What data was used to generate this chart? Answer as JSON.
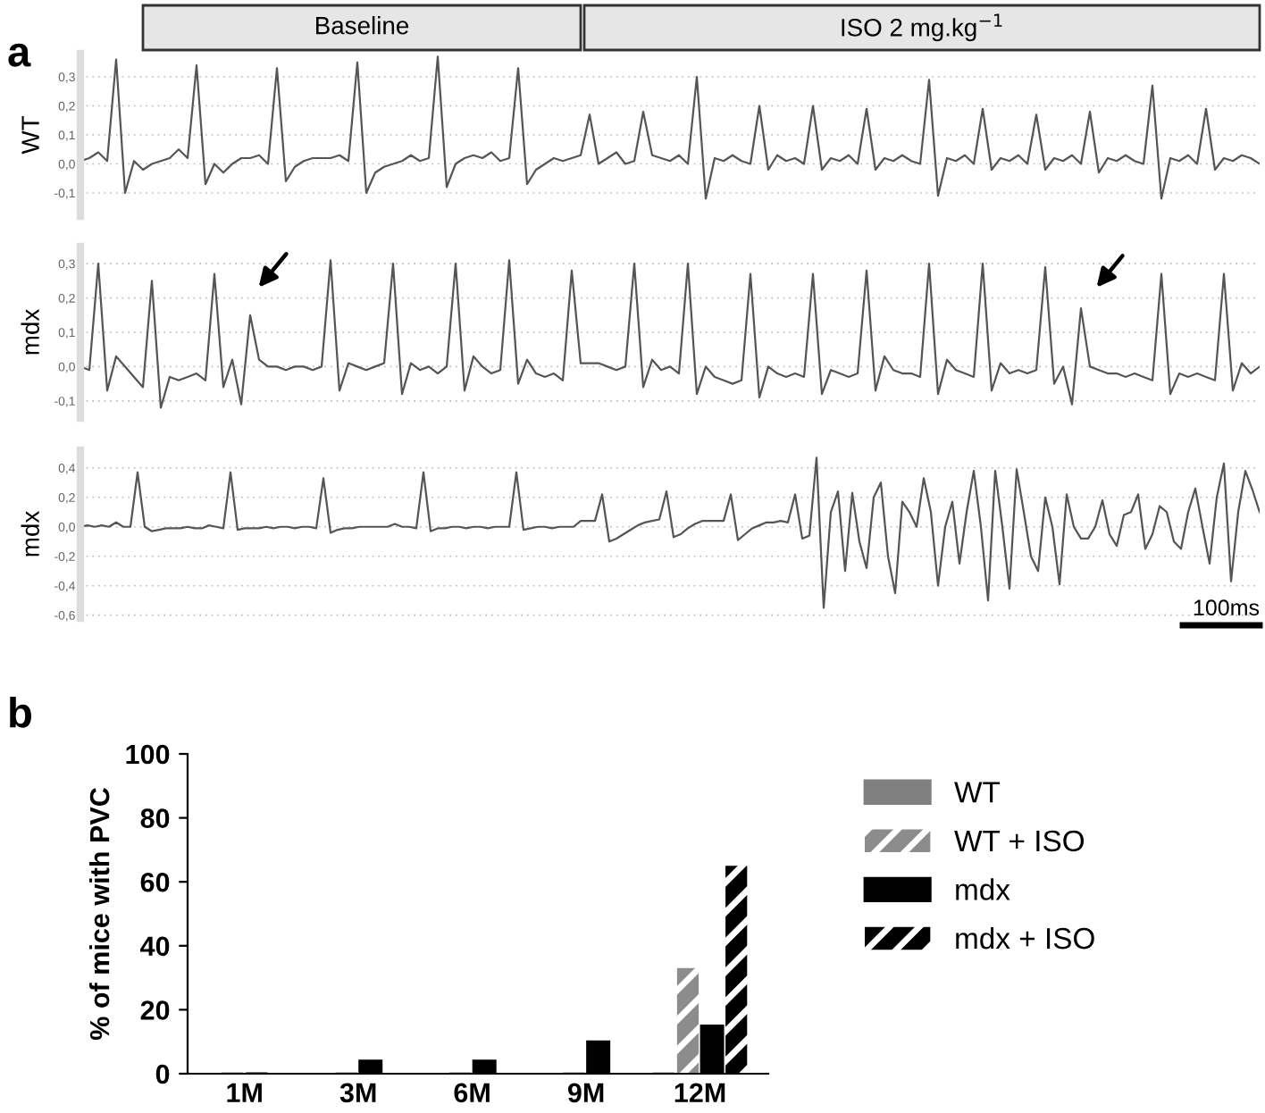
{
  "chart_data": [
    {
      "type": "line",
      "title": "a",
      "ylabel": "WT",
      "annotations": [
        "Baseline",
        "ISO 2 mg.kg$^{−1}$"
      ],
      "categories": [
        null,
        null,
        null,
        null,
        null,
        null,
        null,
        null,
        null,
        null,
        null,
        null,
        null,
        null,
        null,
        null,
        null,
        null,
        null,
        null,
        null,
        null,
        null,
        null,
        null,
        null,
        null,
        null,
        null,
        null,
        null,
        null,
        null,
        null,
        null,
        null,
        null,
        null,
        null,
        null,
        null,
        null,
        null,
        null,
        null,
        null,
        null,
        null,
        null,
        null,
        null,
        null,
        null,
        null,
        null,
        null,
        null,
        null,
        null,
        null,
        null,
        null,
        null,
        null,
        null,
        null,
        null,
        null,
        null,
        null,
        null,
        null,
        null,
        null,
        null,
        null,
        null,
        null,
        null,
        null,
        null,
        null,
        null,
        null,
        null,
        null,
        null,
        null,
        null,
        null,
        null,
        null,
        null,
        null,
        null,
        null,
        null,
        null,
        null,
        null,
        null,
        null,
        null,
        null,
        null,
        null,
        null,
        null,
        null,
        null,
        null,
        null,
        null,
        null,
        null,
        null,
        null,
        null,
        null,
        null,
        null,
        null,
        null,
        null,
        null,
        null,
        null,
        null,
        null,
        null,
        null,
        null,
        null
      ],
      "series": [
        {
          "color": "#555555",
          "values": [
            0.01,
            0.02,
            0.04,
            0.01,
            0.36,
            -0.1,
            0.01,
            -0.02,
            0.0,
            0.01,
            0.02,
            0.05,
            0.02,
            0.34,
            -0.07,
            0.0,
            -0.03,
            0.0,
            0.02,
            0.02,
            0.03,
            0.0,
            0.33,
            -0.06,
            -0.01,
            0.01,
            0.02,
            0.02,
            0.02,
            0.03,
            0.01,
            0.35,
            -0.1,
            -0.03,
            -0.01,
            0.0,
            0.01,
            0.03,
            0.01,
            0.02,
            0.37,
            -0.08,
            0.0,
            0.02,
            0.03,
            0.02,
            0.04,
            0.01,
            0.02,
            0.33,
            -0.07,
            -0.02,
            0.0,
            0.02,
            0.01,
            0.02,
            0.03,
            0.17,
            0.0,
            0.02,
            0.04,
            0.0,
            0.01,
            0.18,
            0.03,
            0.02,
            0.01,
            0.03,
            0.0,
            0.3,
            -0.12,
            0.02,
            0.01,
            0.03,
            0.01,
            0.0,
            0.2,
            -0.02,
            0.03,
            0.01,
            0.02,
            0.0,
            0.2,
            -0.02,
            0.02,
            0.01,
            0.03,
            0.0,
            0.19,
            -0.02,
            0.02,
            0.01,
            0.03,
            0.01,
            0.0,
            0.29,
            -0.11,
            0.02,
            0.01,
            0.03,
            0.0,
            0.19,
            -0.02,
            0.02,
            0.01,
            0.03,
            0.0,
            0.17,
            -0.02,
            0.02,
            0.01,
            0.03,
            0.0,
            0.18,
            -0.03,
            0.02,
            0.01,
            0.03,
            0.01,
            0.0,
            0.27,
            -0.12,
            0.02,
            0.01,
            0.03,
            0.0,
            0.19,
            -0.02,
            0.02,
            0.01,
            0.03,
            0.02,
            0.0
          ]
        }
      ],
      "ylim": [
        -0.18,
        0.38
      ],
      "yticks": [
        {
          "value": -0.1,
          "label": "-0,1"
        },
        {
          "value": 0,
          "label": "0,0"
        },
        {
          "value": 0.1,
          "label": "0,1"
        },
        {
          "value": 0.2,
          "label": "0,2"
        },
        {
          "value": 0.3,
          "label": "0,3"
        }
      ],
      "grid": "y",
      "tick_labels": "y"
    },
    {
      "type": "line",
      "ylabel": "mdx",
      "categories": [
        null,
        null,
        null,
        null,
        null,
        null,
        null,
        null,
        null,
        null,
        null,
        null,
        null,
        null,
        null,
        null,
        null,
        null,
        null,
        null,
        null,
        null,
        null,
        null,
        null,
        null,
        null,
        null,
        null,
        null,
        null,
        null,
        null,
        null,
        null,
        null,
        null,
        null,
        null,
        null,
        null,
        null,
        null,
        null,
        null,
        null,
        null,
        null,
        null,
        null,
        null,
        null,
        null,
        null,
        null,
        null,
        null,
        null,
        null,
        null,
        null,
        null,
        null,
        null,
        null,
        null,
        null,
        null,
        null,
        null,
        null,
        null,
        null,
        null,
        null,
        null,
        null,
        null,
        null,
        null,
        null,
        null,
        null,
        null,
        null,
        null,
        null,
        null,
        null,
        null,
        null,
        null,
        null,
        null,
        null,
        null,
        null,
        null,
        null,
        null,
        null,
        null,
        null,
        null,
        null,
        null,
        null,
        null,
        null,
        null,
        null,
        null,
        null,
        null,
        null,
        null,
        null,
        null,
        null,
        null,
        null,
        null,
        null,
        null,
        null,
        null,
        null,
        null,
        null,
        null,
        null,
        null,
        null
      ],
      "series": [
        {
          "color": "#555555",
          "values": [
            0.0,
            -0.01,
            0.3,
            -0.07,
            0.03,
            0.0,
            -0.03,
            -0.06,
            0.25,
            -0.12,
            -0.03,
            -0.04,
            -0.03,
            -0.02,
            -0.04,
            0.27,
            -0.06,
            0.02,
            -0.11,
            0.15,
            0.02,
            0.0,
            0.0,
            -0.01,
            0.0,
            0.0,
            -0.01,
            0.0,
            0.31,
            -0.07,
            0.01,
            0.0,
            -0.01,
            0.0,
            0.01,
            0.3,
            -0.08,
            0.01,
            -0.01,
            0.0,
            -0.02,
            0.0,
            0.3,
            -0.07,
            0.03,
            0.0,
            -0.02,
            -0.01,
            0.31,
            -0.05,
            0.02,
            -0.02,
            -0.03,
            -0.02,
            -0.04,
            0.28,
            0.01,
            0.01,
            0.01,
            0.0,
            -0.01,
            0.0,
            0.3,
            -0.06,
            0.02,
            -0.01,
            0.0,
            -0.02,
            0.3,
            -0.08,
            0.0,
            -0.03,
            -0.04,
            -0.05,
            -0.04,
            0.27,
            -0.09,
            0.0,
            -0.02,
            -0.03,
            -0.02,
            -0.03,
            0.27,
            -0.08,
            -0.01,
            -0.02,
            -0.03,
            -0.02,
            0.28,
            -0.07,
            0.03,
            -0.01,
            -0.02,
            -0.02,
            -0.03,
            0.3,
            -0.08,
            0.02,
            -0.01,
            -0.02,
            -0.03,
            0.3,
            -0.07,
            0.01,
            -0.02,
            -0.01,
            -0.02,
            -0.01,
            0.29,
            -0.05,
            0.0,
            -0.11,
            0.17,
            0.0,
            -0.01,
            -0.02,
            -0.02,
            -0.03,
            -0.02,
            -0.03,
            -0.04,
            0.27,
            -0.08,
            -0.02,
            -0.03,
            -0.02,
            -0.03,
            -0.04,
            0.27,
            -0.07,
            0.01,
            -0.02,
            0.0
          ]
        }
      ],
      "ylim": [
        -0.15,
        0.35
      ],
      "yticks": [
        {
          "value": -0.1,
          "label": "-0,1"
        },
        {
          "value": 0,
          "label": "0,0"
        },
        {
          "value": 0.1,
          "label": "0,1"
        },
        {
          "value": 0.2,
          "label": "0,2"
        },
        {
          "value": 0.3,
          "label": "0,3"
        }
      ],
      "grid": "y",
      "tick_labels": "y"
    },
    {
      "type": "line",
      "ylabel": "mdx",
      "annotations": [
        "100ms"
      ],
      "categories": [
        null,
        null,
        null,
        null,
        null,
        null,
        null,
        null,
        null,
        null,
        null,
        null,
        null,
        null,
        null,
        null,
        null,
        null,
        null,
        null,
        null,
        null,
        null,
        null,
        null,
        null,
        null,
        null,
        null,
        null,
        null,
        null,
        null,
        null,
        null,
        null,
        null,
        null,
        null,
        null,
        null,
        null,
        null,
        null,
        null,
        null,
        null,
        null,
        null,
        null,
        null,
        null,
        null,
        null,
        null,
        null,
        null,
        null,
        null,
        null,
        null,
        null,
        null,
        null,
        null,
        null,
        null,
        null,
        null,
        null,
        null,
        null,
        null,
        null,
        null,
        null,
        null,
        null,
        null,
        null,
        null,
        null,
        null,
        null,
        null,
        null,
        null,
        null,
        null,
        null,
        null,
        null,
        null,
        null,
        null,
        null,
        null,
        null,
        null,
        null,
        null,
        null,
        null,
        null,
        null,
        null,
        null,
        null,
        null,
        null,
        null,
        null,
        null,
        null,
        null,
        null,
        null,
        null,
        null,
        null,
        null,
        null,
        null,
        null,
        null,
        null,
        null,
        null,
        null,
        null,
        null,
        null,
        null,
        null,
        null,
        null,
        null,
        null,
        null,
        null,
        null,
        null,
        null,
        null,
        null,
        null,
        null,
        null,
        null,
        null,
        null,
        null,
        null,
        null,
        null,
        null,
        null,
        null,
        null,
        null,
        null,
        null,
        null,
        null,
        null,
        null
      ],
      "series": [
        {
          "color": "#555555",
          "values": [
            0.0,
            0.01,
            0.0,
            0.01,
            0.0,
            0.03,
            0.0,
            0.0,
            0.37,
            0.0,
            -0.03,
            -0.02,
            -0.01,
            -0.01,
            -0.01,
            0.0,
            -0.01,
            -0.01,
            0.01,
            0.0,
            -0.01,
            0.37,
            -0.02,
            -0.01,
            -0.01,
            -0.01,
            0.0,
            -0.01,
            0.0,
            0.0,
            -0.01,
            0.0,
            0.0,
            -0.01,
            0.33,
            -0.04,
            -0.02,
            -0.01,
            -0.01,
            0.0,
            0.0,
            0.0,
            0.0,
            0.0,
            0.02,
            0.0,
            0.0,
            -0.01,
            0.37,
            -0.03,
            -0.01,
            -0.01,
            0.0,
            0.0,
            -0.01,
            0.0,
            0.0,
            -0.01,
            0.0,
            0.0,
            0.0,
            0.37,
            -0.02,
            -0.01,
            0.0,
            0.0,
            -0.01,
            0.0,
            0.0,
            0.0,
            0.04,
            0.04,
            0.04,
            0.22,
            -0.1,
            -0.08,
            -0.05,
            -0.02,
            0.01,
            0.03,
            0.04,
            0.05,
            0.24,
            -0.07,
            -0.05,
            -0.01,
            0.02,
            0.04,
            0.04,
            0.04,
            0.04,
            0.22,
            -0.09,
            -0.05,
            -0.01,
            0.01,
            0.03,
            0.03,
            0.04,
            0.03,
            0.22,
            -0.08,
            -0.06,
            0.47,
            -0.55,
            0.1,
            0.24,
            -0.3,
            0.23,
            -0.1,
            -0.28,
            0.2,
            0.3,
            -0.2,
            -0.45,
            0.17,
            0.1,
            0.0,
            0.33,
            0.1,
            -0.4,
            0.0,
            0.17,
            -0.25,
            0.1,
            0.38,
            0.0,
            -0.5,
            0.38,
            0.0,
            -0.42,
            0.39,
            0.1,
            -0.2,
            -0.3,
            0.2,
            0.0,
            -0.39,
            0.22,
            0.0,
            -0.08,
            -0.08,
            0.0,
            0.18,
            -0.05,
            -0.13,
            0.08,
            0.1,
            0.22,
            -0.15,
            -0.05,
            0.14,
            0.1,
            -0.1,
            -0.15,
            0.1,
            0.26,
            0.0,
            -0.25,
            0.2,
            0.43,
            -0.37,
            0.1,
            0.38,
            0.25,
            0.1
          ]
        }
      ],
      "ylim": [
        -0.62,
        0.52
      ],
      "yticks": [
        {
          "value": -0.6,
          "label": "-0,6"
        },
        {
          "value": -0.4,
          "label": "-0,4"
        },
        {
          "value": -0.2,
          "label": "-0,2"
        },
        {
          "value": 0,
          "label": "0,0"
        },
        {
          "value": 0.2,
          "label": "0,2"
        },
        {
          "value": 0.4,
          "label": "0,4"
        }
      ],
      "grid": "y",
      "tick_labels": "y"
    },
    {
      "type": "bar",
      "title": "b",
      "ylabel": "% of mice with PVC",
      "categories": [
        "1M",
        "3M",
        "6M",
        "9M",
        "12M"
      ],
      "series": [
        {
          "name": "WT",
          "color": "#808080",
          "values": [
            0,
            0,
            0,
            0,
            0
          ]
        },
        {
          "name": "WT + ISO",
          "color": "#8c8c8c",
          "values": [
            null,
            null,
            null,
            null,
            33
          ]
        },
        {
          "name": "mdx",
          "color": "#000000",
          "values": [
            0,
            4,
            4,
            10,
            15
          ]
        },
        {
          "name": "mdx + ISO",
          "color": "#000000",
          "values": [
            null,
            null,
            null,
            null,
            65
          ]
        }
      ],
      "ylim": [
        0,
        100
      ],
      "yticks": [
        0,
        20,
        40,
        60,
        80,
        100
      ],
      "legend": "right"
    }
  ]
}
